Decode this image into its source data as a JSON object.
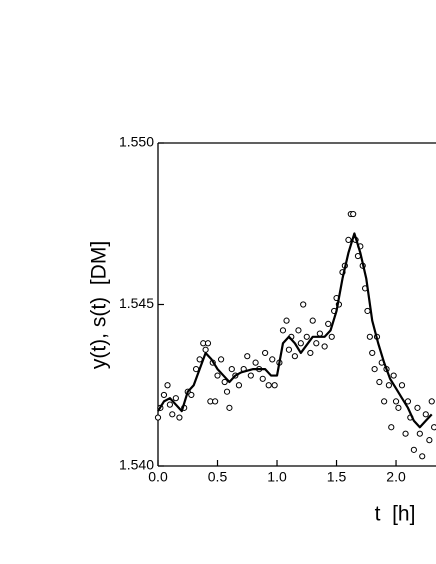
{
  "chart_data": {
    "type": "scatter",
    "x_label": "t  [h]",
    "y_label": "y(t), s(t)  [DM]",
    "xlim": [
      0,
      2.34
    ],
    "ylim": [
      1.54,
      1.55
    ],
    "xticks": [
      {
        "value": 0,
        "label": "0.0"
      },
      0.5,
      {
        "value": 1,
        "label": "1.0"
      },
      1.5,
      {
        "value": 2,
        "label": "2.0"
      }
    ],
    "yticks": [
      {
        "value": 1.54,
        "label": "1.540"
      },
      {
        "value": 1.545,
        "label": "1.545"
      },
      {
        "value": 1.55,
        "label": "1.550"
      }
    ],
    "series": [
      {
        "style": "markers",
        "color": "#000000",
        "x": [
          0.0,
          0.02,
          0.05,
          0.08,
          0.1,
          0.12,
          0.15,
          0.18,
          0.22,
          0.25,
          0.28,
          0.32,
          0.35,
          0.38,
          0.4,
          0.42,
          0.44,
          0.46,
          0.48,
          0.5,
          0.53,
          0.56,
          0.58,
          0.6,
          0.62,
          0.65,
          0.68,
          0.72,
          0.75,
          0.78,
          0.82,
          0.85,
          0.88,
          0.9,
          0.93,
          0.96,
          0.98,
          1.02,
          1.05,
          1.08,
          1.1,
          1.12,
          1.15,
          1.18,
          1.2,
          1.22,
          1.25,
          1.28,
          1.3,
          1.33,
          1.36,
          1.4,
          1.43,
          1.46,
          1.48,
          1.5,
          1.52,
          1.55,
          1.57,
          1.6,
          1.62,
          1.64,
          1.66,
          1.68,
          1.7,
          1.72,
          1.74,
          1.76,
          1.78,
          1.8,
          1.82,
          1.84,
          1.86,
          1.88,
          1.9,
          1.92,
          1.94,
          1.96,
          1.98,
          2.0,
          2.02,
          2.05,
          2.08,
          2.1,
          2.12,
          2.15,
          2.18,
          2.2,
          2.22,
          2.25,
          2.28,
          2.3,
          2.32
        ],
        "values": [
          1.5415,
          1.5418,
          1.5422,
          1.5425,
          1.5419,
          1.5416,
          1.5421,
          1.5415,
          1.5418,
          1.5423,
          1.5422,
          1.543,
          1.5433,
          1.5438,
          1.5436,
          1.5438,
          1.542,
          1.5432,
          1.542,
          1.5428,
          1.5433,
          1.5426,
          1.5423,
          1.5418,
          1.543,
          1.5428,
          1.5425,
          1.543,
          1.5434,
          1.5428,
          1.5432,
          1.543,
          1.5427,
          1.5435,
          1.5425,
          1.5433,
          1.5425,
          1.5432,
          1.5442,
          1.5445,
          1.5436,
          1.544,
          1.5434,
          1.5442,
          1.5438,
          1.545,
          1.544,
          1.5435,
          1.5445,
          1.5438,
          1.5441,
          1.5437,
          1.5444,
          1.544,
          1.5448,
          1.5452,
          1.545,
          1.546,
          1.5462,
          1.547,
          1.5478,
          1.5478,
          1.547,
          1.5465,
          1.5468,
          1.5462,
          1.5455,
          1.5448,
          1.544,
          1.5435,
          1.543,
          1.544,
          1.5426,
          1.5432,
          1.542,
          1.543,
          1.5425,
          1.5412,
          1.5428,
          1.542,
          1.5418,
          1.5425,
          1.541,
          1.542,
          1.5415,
          1.5405,
          1.5418,
          1.541,
          1.5403,
          1.5416,
          1.5408,
          1.542,
          1.5412
        ]
      },
      {
        "style": "line",
        "color": "#000000",
        "x": [
          0.0,
          0.05,
          0.1,
          0.15,
          0.2,
          0.25,
          0.3,
          0.35,
          0.4,
          0.45,
          0.5,
          0.55,
          0.6,
          0.65,
          0.7,
          0.8,
          0.9,
          0.95,
          1.0,
          1.05,
          1.1,
          1.15,
          1.2,
          1.3,
          1.4,
          1.45,
          1.5,
          1.55,
          1.6,
          1.65,
          1.7,
          1.75,
          1.8,
          1.85,
          1.9,
          1.95,
          2.0,
          2.05,
          2.1,
          2.15,
          2.2,
          2.25,
          2.3
        ],
        "values": [
          1.5417,
          1.542,
          1.5421,
          1.5419,
          1.5417,
          1.5423,
          1.5425,
          1.543,
          1.5435,
          1.5433,
          1.543,
          1.5428,
          1.5426,
          1.5428,
          1.5429,
          1.543,
          1.543,
          1.5428,
          1.5428,
          1.5438,
          1.544,
          1.5438,
          1.5435,
          1.544,
          1.544,
          1.5442,
          1.5448,
          1.5458,
          1.5466,
          1.5472,
          1.5466,
          1.5458,
          1.5445,
          1.5438,
          1.5432,
          1.5427,
          1.5424,
          1.5421,
          1.5418,
          1.5414,
          1.5412,
          1.5414,
          1.5416
        ]
      }
    ]
  }
}
